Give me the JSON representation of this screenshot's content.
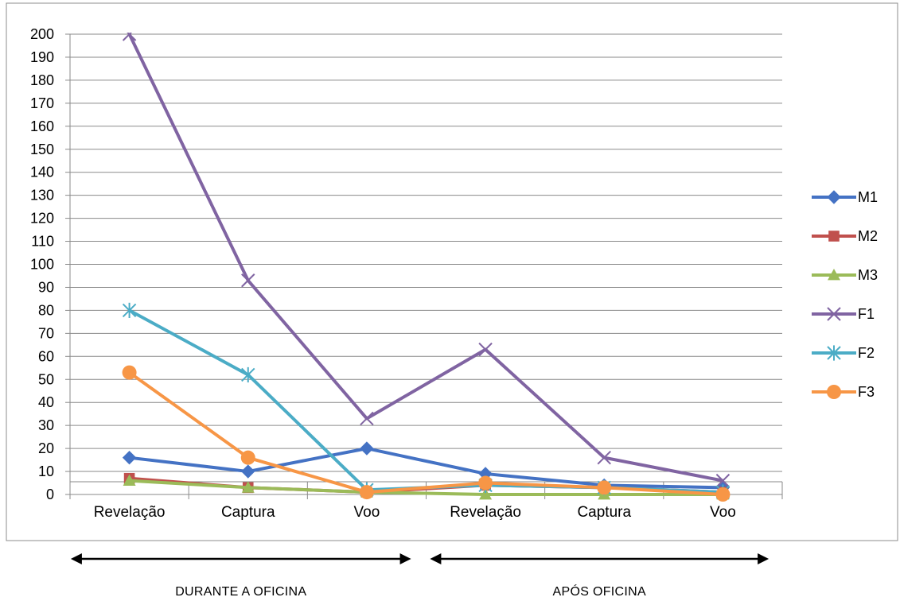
{
  "chart_data": {
    "type": "line",
    "title": "",
    "xlabel": "",
    "ylabel": "",
    "categories": [
      "Revelação",
      "Captura",
      "Voo",
      "Revelação",
      "Captura",
      "Voo"
    ],
    "ylim": [
      0,
      200
    ],
    "y_tick_step": 10,
    "grid": true,
    "legend_position": "right",
    "series": [
      {
        "name": "M1",
        "values": [
          16,
          10,
          20,
          9,
          4,
          3
        ],
        "color": "#4472C4",
        "marker": "diamond"
      },
      {
        "name": "M2",
        "values": [
          7,
          3,
          1,
          4,
          3,
          1
        ],
        "color": "#C0504D",
        "marker": "square"
      },
      {
        "name": "M3",
        "values": [
          6,
          3,
          1,
          0,
          0,
          0
        ],
        "color": "#9BBB59",
        "marker": "triangle"
      },
      {
        "name": "F1",
        "values": [
          200,
          93,
          33,
          63,
          16,
          6
        ],
        "color": "#8064A2",
        "marker": "x"
      },
      {
        "name": "F2",
        "values": [
          80,
          52,
          2,
          4,
          3,
          1
        ],
        "color": "#4BACC6",
        "marker": "star"
      },
      {
        "name": "F3",
        "values": [
          53,
          16,
          1,
          5,
          3,
          0
        ],
        "color": "#F79646",
        "marker": "circle"
      }
    ],
    "group_labels": [
      {
        "label": "DURANTE A OFICINA",
        "categories": [
          0,
          2
        ]
      },
      {
        "label": "APÓS OFICINA",
        "categories": [
          3,
          5
        ]
      }
    ]
  }
}
